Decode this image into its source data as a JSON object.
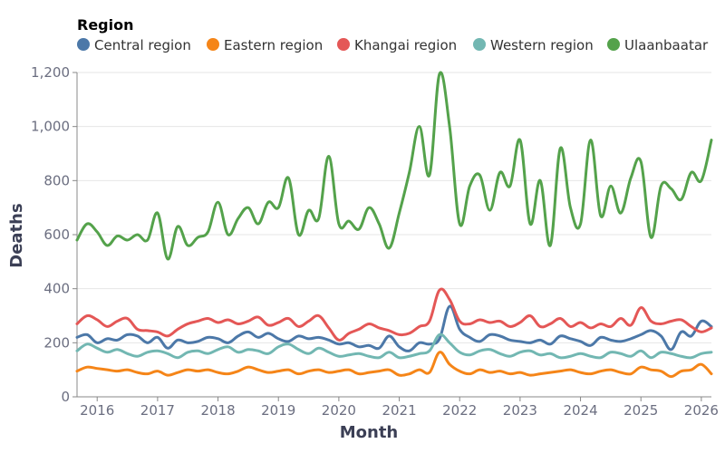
{
  "chart_data": {
    "type": "line",
    "xlabel": "Month",
    "ylabel": "Deaths",
    "legend_title": "Region",
    "legend_position": "top",
    "grid": true,
    "x_ticks": [
      "2016",
      "2017",
      "2018",
      "2019",
      "2020",
      "2021",
      "2022",
      "2023",
      "2024",
      "2025",
      "2026"
    ],
    "y_ticks": [
      "0",
      "200",
      "400",
      "600",
      "800",
      "1,000",
      "1,200"
    ],
    "xlim": [
      "2015-09",
      "2026-03"
    ],
    "ylim": [
      0,
      1200
    ],
    "series": [
      {
        "name": "Central region",
        "color": "#4c78a8",
        "x": [
          "2015-09",
          "2015-11",
          "2016-01",
          "2016-03",
          "2016-05",
          "2016-07",
          "2016-09",
          "2016-11",
          "2017-01",
          "2017-03",
          "2017-05",
          "2017-07",
          "2017-09",
          "2017-11",
          "2018-01",
          "2018-03",
          "2018-05",
          "2018-07",
          "2018-09",
          "2018-11",
          "2019-01",
          "2019-03",
          "2019-05",
          "2019-07",
          "2019-09",
          "2019-11",
          "2020-01",
          "2020-03",
          "2020-05",
          "2020-07",
          "2020-09",
          "2020-11",
          "2021-01",
          "2021-03",
          "2021-05",
          "2021-07",
          "2021-09",
          "2021-11",
          "2022-01",
          "2022-03",
          "2022-05",
          "2022-07",
          "2022-09",
          "2022-11",
          "2023-01",
          "2023-03",
          "2023-05",
          "2023-07",
          "2023-09",
          "2023-11",
          "2024-01",
          "2024-03",
          "2024-05",
          "2024-07",
          "2024-09",
          "2024-11",
          "2025-01",
          "2025-03",
          "2025-05",
          "2025-07",
          "2025-09",
          "2025-11",
          "2026-01",
          "2026-03"
        ],
        "values": [
          220,
          230,
          200,
          215,
          210,
          230,
          225,
          200,
          220,
          180,
          210,
          200,
          205,
          220,
          215,
          200,
          225,
          240,
          220,
          235,
          215,
          205,
          225,
          215,
          220,
          210,
          195,
          200,
          185,
          190,
          180,
          225,
          185,
          170,
          200,
          195,
          215,
          335,
          250,
          220,
          205,
          230,
          225,
          210,
          205,
          200,
          210,
          195,
          225,
          215,
          205,
          190,
          220,
          210,
          205,
          215,
          230,
          245,
          225,
          175,
          240,
          225,
          280,
          260
        ]
      },
      {
        "name": "Eastern region",
        "color": "#f58518",
        "x": [
          "2015-09",
          "2015-11",
          "2016-01",
          "2016-03",
          "2016-05",
          "2016-07",
          "2016-09",
          "2016-11",
          "2017-01",
          "2017-03",
          "2017-05",
          "2017-07",
          "2017-09",
          "2017-11",
          "2018-01",
          "2018-03",
          "2018-05",
          "2018-07",
          "2018-09",
          "2018-11",
          "2019-01",
          "2019-03",
          "2019-05",
          "2019-07",
          "2019-09",
          "2019-11",
          "2020-01",
          "2020-03",
          "2020-05",
          "2020-07",
          "2020-09",
          "2020-11",
          "2021-01",
          "2021-03",
          "2021-05",
          "2021-07",
          "2021-09",
          "2021-11",
          "2022-01",
          "2022-03",
          "2022-05",
          "2022-07",
          "2022-09",
          "2022-11",
          "2023-01",
          "2023-03",
          "2023-05",
          "2023-07",
          "2023-09",
          "2023-11",
          "2024-01",
          "2024-03",
          "2024-05",
          "2024-07",
          "2024-09",
          "2024-11",
          "2025-01",
          "2025-03",
          "2025-05",
          "2025-07",
          "2025-09",
          "2025-11",
          "2026-01",
          "2026-03"
        ],
        "values": [
          95,
          110,
          105,
          100,
          95,
          100,
          90,
          85,
          95,
          80,
          90,
          100,
          95,
          100,
          90,
          85,
          95,
          110,
          100,
          90,
          95,
          100,
          85,
          95,
          100,
          90,
          95,
          100,
          85,
          90,
          95,
          100,
          80,
          85,
          100,
          90,
          165,
          120,
          95,
          85,
          100,
          90,
          95,
          85,
          90,
          80,
          85,
          90,
          95,
          100,
          90,
          85,
          95,
          100,
          90,
          85,
          110,
          100,
          95,
          75,
          95,
          100,
          120,
          85
        ]
      },
      {
        "name": "Khangai region",
        "color": "#e45756",
        "x": [
          "2015-09",
          "2015-11",
          "2016-01",
          "2016-03",
          "2016-05",
          "2016-07",
          "2016-09",
          "2016-11",
          "2017-01",
          "2017-03",
          "2017-05",
          "2017-07",
          "2017-09",
          "2017-11",
          "2018-01",
          "2018-03",
          "2018-05",
          "2018-07",
          "2018-09",
          "2018-11",
          "2019-01",
          "2019-03",
          "2019-05",
          "2019-07",
          "2019-09",
          "2019-11",
          "2020-01",
          "2020-03",
          "2020-05",
          "2020-07",
          "2020-09",
          "2020-11",
          "2021-01",
          "2021-03",
          "2021-05",
          "2021-07",
          "2021-09",
          "2021-11",
          "2022-01",
          "2022-03",
          "2022-05",
          "2022-07",
          "2022-09",
          "2022-11",
          "2023-01",
          "2023-03",
          "2023-05",
          "2023-07",
          "2023-09",
          "2023-11",
          "2024-01",
          "2024-03",
          "2024-05",
          "2024-07",
          "2024-09",
          "2024-11",
          "2025-01",
          "2025-03",
          "2025-05",
          "2025-07",
          "2025-09",
          "2025-11",
          "2026-01",
          "2026-03"
        ],
        "values": [
          270,
          300,
          285,
          260,
          280,
          290,
          250,
          245,
          240,
          225,
          250,
          270,
          280,
          290,
          275,
          285,
          270,
          280,
          295,
          265,
          275,
          290,
          260,
          280,
          300,
          255,
          210,
          235,
          250,
          270,
          255,
          245,
          230,
          235,
          260,
          280,
          395,
          360,
          280,
          270,
          285,
          275,
          280,
          260,
          275,
          300,
          260,
          270,
          290,
          260,
          275,
          255,
          270,
          260,
          290,
          265,
          330,
          280,
          270,
          280,
          285,
          260,
          240,
          255
        ]
      },
      {
        "name": "Western region",
        "color": "#72b7b2",
        "x": [
          "2015-09",
          "2015-11",
          "2016-01",
          "2016-03",
          "2016-05",
          "2016-07",
          "2016-09",
          "2016-11",
          "2017-01",
          "2017-03",
          "2017-05",
          "2017-07",
          "2017-09",
          "2017-11",
          "2018-01",
          "2018-03",
          "2018-05",
          "2018-07",
          "2018-09",
          "2018-11",
          "2019-01",
          "2019-03",
          "2019-05",
          "2019-07",
          "2019-09",
          "2019-11",
          "2020-01",
          "2020-03",
          "2020-05",
          "2020-07",
          "2020-09",
          "2020-11",
          "2021-01",
          "2021-03",
          "2021-05",
          "2021-07",
          "2021-09",
          "2021-11",
          "2022-01",
          "2022-03",
          "2022-05",
          "2022-07",
          "2022-09",
          "2022-11",
          "2023-01",
          "2023-03",
          "2023-05",
          "2023-07",
          "2023-09",
          "2023-11",
          "2024-01",
          "2024-03",
          "2024-05",
          "2024-07",
          "2024-09",
          "2024-11",
          "2025-01",
          "2025-03",
          "2025-05",
          "2025-07",
          "2025-09",
          "2025-11",
          "2026-01",
          "2026-03"
        ],
        "values": [
          170,
          195,
          180,
          165,
          175,
          160,
          150,
          165,
          170,
          160,
          145,
          165,
          170,
          160,
          175,
          185,
          165,
          175,
          170,
          160,
          185,
          195,
          175,
          160,
          180,
          165,
          150,
          155,
          160,
          150,
          145,
          165,
          145,
          150,
          160,
          170,
          230,
          200,
          165,
          155,
          170,
          175,
          160,
          150,
          165,
          170,
          155,
          160,
          145,
          150,
          160,
          150,
          145,
          165,
          160,
          150,
          170,
          145,
          165,
          160,
          150,
          145,
          160,
          165
        ]
      },
      {
        "name": "Ulaanbaatar",
        "color": "#54a24b",
        "x": [
          "2015-09",
          "2015-11",
          "2016-01",
          "2016-03",
          "2016-05",
          "2016-07",
          "2016-09",
          "2016-11",
          "2017-01",
          "2017-03",
          "2017-05",
          "2017-07",
          "2017-09",
          "2017-11",
          "2018-01",
          "2018-03",
          "2018-05",
          "2018-07",
          "2018-09",
          "2018-11",
          "2019-01",
          "2019-03",
          "2019-05",
          "2019-07",
          "2019-09",
          "2019-11",
          "2020-01",
          "2020-03",
          "2020-05",
          "2020-07",
          "2020-09",
          "2020-11",
          "2021-01",
          "2021-03",
          "2021-05",
          "2021-07",
          "2021-09",
          "2021-11",
          "2022-01",
          "2022-03",
          "2022-05",
          "2022-07",
          "2022-09",
          "2022-11",
          "2023-01",
          "2023-03",
          "2023-05",
          "2023-07",
          "2023-09",
          "2023-11",
          "2024-01",
          "2024-03",
          "2024-05",
          "2024-07",
          "2024-09",
          "2024-11",
          "2025-01",
          "2025-03",
          "2025-05",
          "2025-07",
          "2025-09",
          "2025-11",
          "2026-01",
          "2026-03"
        ],
        "values": [
          580,
          640,
          610,
          560,
          595,
          580,
          600,
          580,
          680,
          510,
          630,
          560,
          590,
          610,
          720,
          600,
          660,
          700,
          640,
          720,
          700,
          810,
          600,
          690,
          660,
          890,
          640,
          650,
          620,
          700,
          640,
          550,
          680,
          830,
          1000,
          820,
          1195,
          1000,
          640,
          780,
          820,
          690,
          830,
          780,
          950,
          640,
          800,
          560,
          920,
          700,
          640,
          950,
          670,
          780,
          680,
          810,
          870,
          590,
          780,
          770,
          730,
          830,
          800,
          950
        ]
      }
    ]
  }
}
